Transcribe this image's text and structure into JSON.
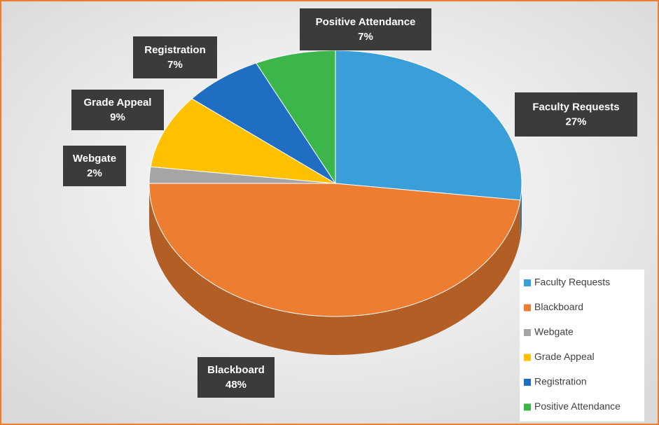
{
  "chart_data": {
    "type": "pie",
    "categories": [
      "Faculty Requests",
      "Blackboard",
      "Webgate",
      "Grade Appeal",
      "Registration",
      "Positive Attendance"
    ],
    "values": [
      27,
      48,
      2,
      9,
      7,
      7
    ],
    "value_labels": [
      "27%",
      "48%",
      "2%",
      "9%",
      "7%",
      "7%"
    ],
    "colors": [
      "#3a9fd8",
      "#ed7d31",
      "#a5a5a5",
      "#ffc000",
      "#1f6ec2",
      "#3cb54a"
    ],
    "legend": "bottom-right"
  }
}
